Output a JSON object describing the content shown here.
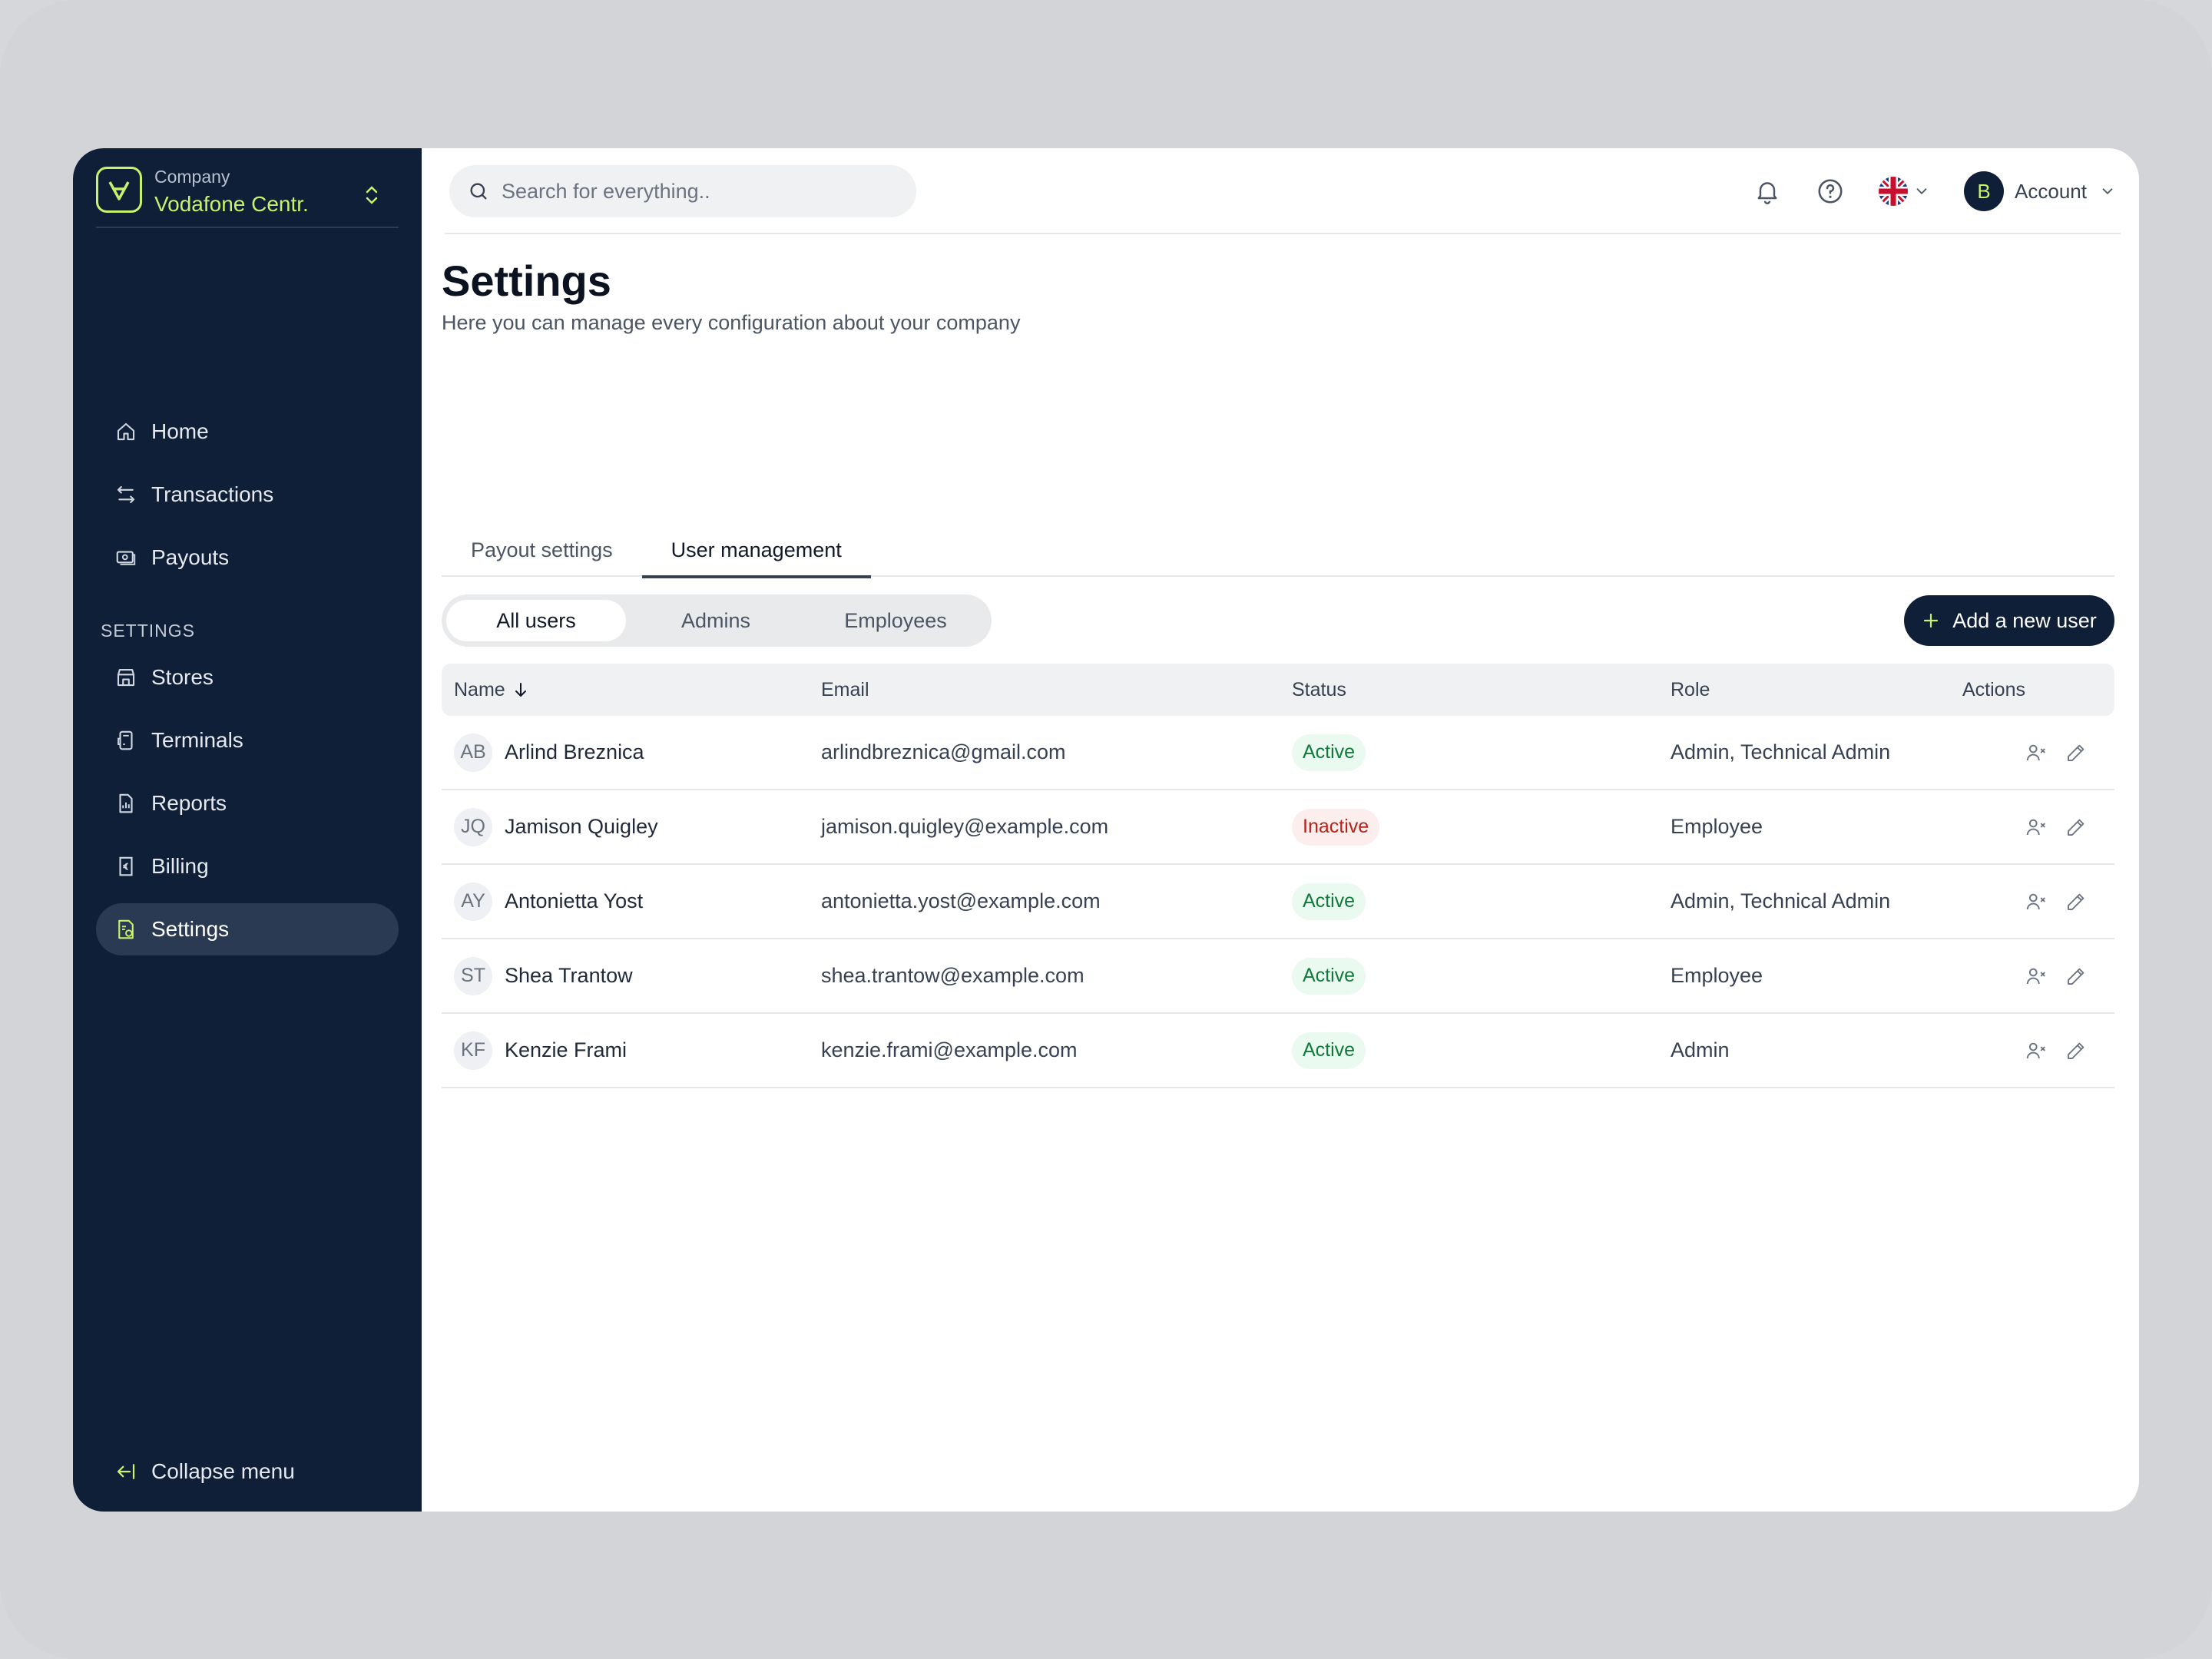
{
  "sidebar": {
    "company_label": "Company",
    "company_name": "Vodafone Centr.",
    "section_label": "SETTINGS",
    "items": [
      {
        "label": "Home",
        "icon": "home-icon"
      },
      {
        "label": "Transactions",
        "icon": "transfer-icon"
      },
      {
        "label": "Payouts",
        "icon": "payout-icon"
      }
    ],
    "settings_items": [
      {
        "label": "Stores",
        "icon": "store-icon"
      },
      {
        "label": "Terminals",
        "icon": "terminal-icon"
      },
      {
        "label": "Reports",
        "icon": "report-icon"
      },
      {
        "label": "Billing",
        "icon": "billing-icon"
      },
      {
        "label": "Settings",
        "icon": "settings-icon",
        "active": true
      }
    ],
    "collapse_label": "Collapse menu"
  },
  "header": {
    "search_placeholder": "Search for everything..",
    "account_initial": "B",
    "account_label": "Account"
  },
  "page": {
    "title": "Settings",
    "subtitle": "Here you can manage every configuration about your company",
    "tabs": [
      {
        "label": "Payout settings"
      },
      {
        "label": "User management",
        "active": true
      }
    ],
    "filters": [
      {
        "label": "All users",
        "active": true
      },
      {
        "label": "Admins"
      },
      {
        "label": "Employees"
      }
    ],
    "add_button": "Add a new user"
  },
  "table": {
    "columns": [
      "Name",
      "Email",
      "Status",
      "Role",
      "Actions"
    ],
    "rows": [
      {
        "initials": "AB",
        "name": "Arlind Breznica",
        "email": "arlindbreznica@gmail.com",
        "status": "Active",
        "role": "Admin, Technical Admin"
      },
      {
        "initials": "JQ",
        "name": "Jamison Quigley",
        "email": "jamison.quigley@example.com",
        "status": "Inactive",
        "role": "Employee"
      },
      {
        "initials": "AY",
        "name": "Antonietta Yost",
        "email": "antonietta.yost@example.com",
        "status": "Active",
        "role": "Admin, Technical Admin"
      },
      {
        "initials": "ST",
        "name": "Shea Trantow",
        "email": "shea.trantow@example.com",
        "status": "Active",
        "role": "Employee"
      },
      {
        "initials": "KF",
        "name": "Kenzie Frami",
        "email": "kenzie.frami@example.com",
        "status": "Active",
        "role": "Admin"
      }
    ]
  },
  "colors": {
    "sidebar_bg": "#0f1f38",
    "accent": "#c6f36b",
    "active_green": "#0f7a3a",
    "inactive_red": "#b42318"
  }
}
